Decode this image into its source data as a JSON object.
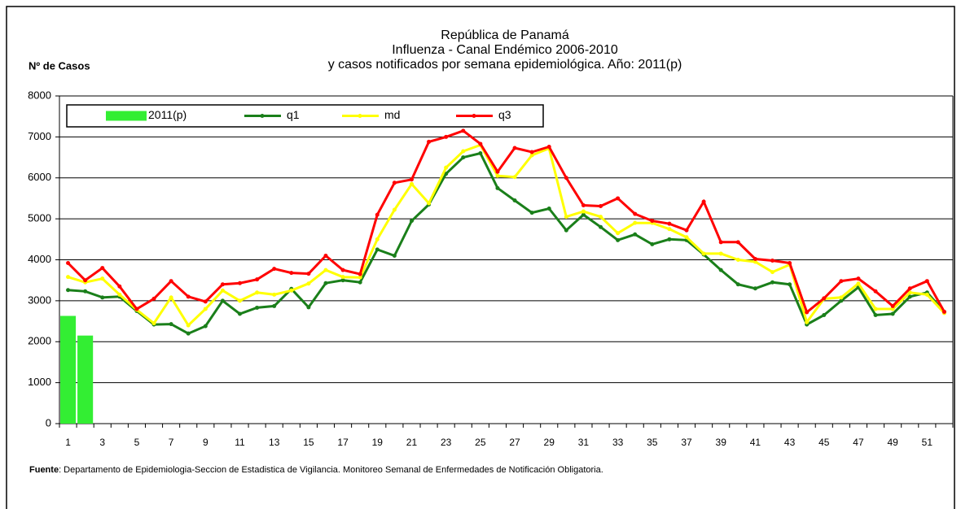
{
  "chart_data": {
    "type": "line",
    "title": [
      "República de Panamá",
      "Influenza - Canal Endémico  2006-2010",
      "y casos notificados por semana epidemiológica.  Año: 2011(p)"
    ],
    "y_label": "Nº de Casos",
    "source_label": "Fuente",
    "source_text": ": Departamento de Epidemiologia-Seccion de Estadistica de Vigilancia. Monitoreo Semanal de Enfermedades de Notificación Obligatoria.",
    "categories": [
      "1",
      null,
      "3",
      null,
      "5",
      null,
      "7",
      null,
      "9",
      null,
      "11",
      null,
      "13",
      null,
      "15",
      null,
      "17",
      null,
      "19",
      null,
      "21",
      null,
      "23",
      null,
      "25",
      null,
      "27",
      null,
      "29",
      null,
      "31",
      null,
      "33",
      null,
      "35",
      null,
      "37",
      null,
      "39",
      null,
      "41",
      null,
      "43",
      null,
      "45",
      null,
      "47",
      null,
      "49",
      null,
      "51",
      null
    ],
    "ylim": [
      0,
      8000
    ],
    "yticks": [
      0,
      1000,
      2000,
      3000,
      4000,
      5000,
      6000,
      7000,
      8000
    ],
    "grid": true,
    "series": [
      {
        "name": "2011(p)",
        "type": "bar",
        "color": "#33ee33",
        "values": [
          2630,
          2150,
          null,
          null,
          null,
          null,
          null,
          null,
          null,
          null,
          null,
          null,
          null,
          null,
          null,
          null,
          null,
          null,
          null,
          null,
          null,
          null,
          null,
          null,
          null,
          null,
          null,
          null,
          null,
          null,
          null,
          null,
          null,
          null,
          null,
          null,
          null,
          null,
          null,
          null,
          null,
          null,
          null,
          null,
          null,
          null,
          null,
          null,
          null,
          null,
          null,
          null
        ]
      },
      {
        "name": "q1",
        "type": "line",
        "color": "#1a7f1a",
        "values": [
          3260,
          3230,
          3080,
          3100,
          2750,
          2420,
          2430,
          2200,
          2380,
          3000,
          2680,
          2830,
          2870,
          3290,
          2840,
          3430,
          3500,
          3450,
          4250,
          4100,
          4950,
          5350,
          6100,
          6500,
          6600,
          5750,
          5450,
          5150,
          5250,
          4720,
          5100,
          4800,
          4480,
          4620,
          4380,
          4500,
          4480,
          4130,
          3750,
          3400,
          3300,
          3450,
          3400,
          2420,
          2650,
          3000,
          3330,
          2650,
          2680,
          3100,
          3200,
          2730
        ]
      },
      {
        "name": "md",
        "type": "line",
        "color": "#ffff00",
        "values": [
          3580,
          3450,
          3540,
          3150,
          2780,
          2450,
          3080,
          2400,
          2800,
          3250,
          3000,
          3200,
          3150,
          3250,
          3420,
          3750,
          3580,
          3570,
          4500,
          5220,
          5850,
          5380,
          6250,
          6650,
          6800,
          6050,
          6020,
          6550,
          6720,
          5050,
          5180,
          5050,
          4650,
          4900,
          4900,
          4750,
          4550,
          4150,
          4150,
          4000,
          3950,
          3700,
          3880,
          2480,
          3050,
          3080,
          3420,
          2800,
          2800,
          3200,
          3150,
          2700
        ]
      },
      {
        "name": "q3",
        "type": "line",
        "color": "#ff0000",
        "values": [
          3920,
          3500,
          3800,
          3350,
          2800,
          3050,
          3480,
          3100,
          2980,
          3400,
          3430,
          3520,
          3780,
          3680,
          3660,
          4100,
          3750,
          3650,
          5100,
          5880,
          5960,
          6880,
          7000,
          7150,
          6830,
          6150,
          6730,
          6630,
          6760,
          6000,
          5330,
          5310,
          5500,
          5120,
          4950,
          4880,
          4720,
          5420,
          4430,
          4430,
          4020,
          3980,
          3920,
          2720,
          3060,
          3480,
          3540,
          3230,
          2870,
          3300,
          3480,
          2730
        ]
      }
    ]
  }
}
